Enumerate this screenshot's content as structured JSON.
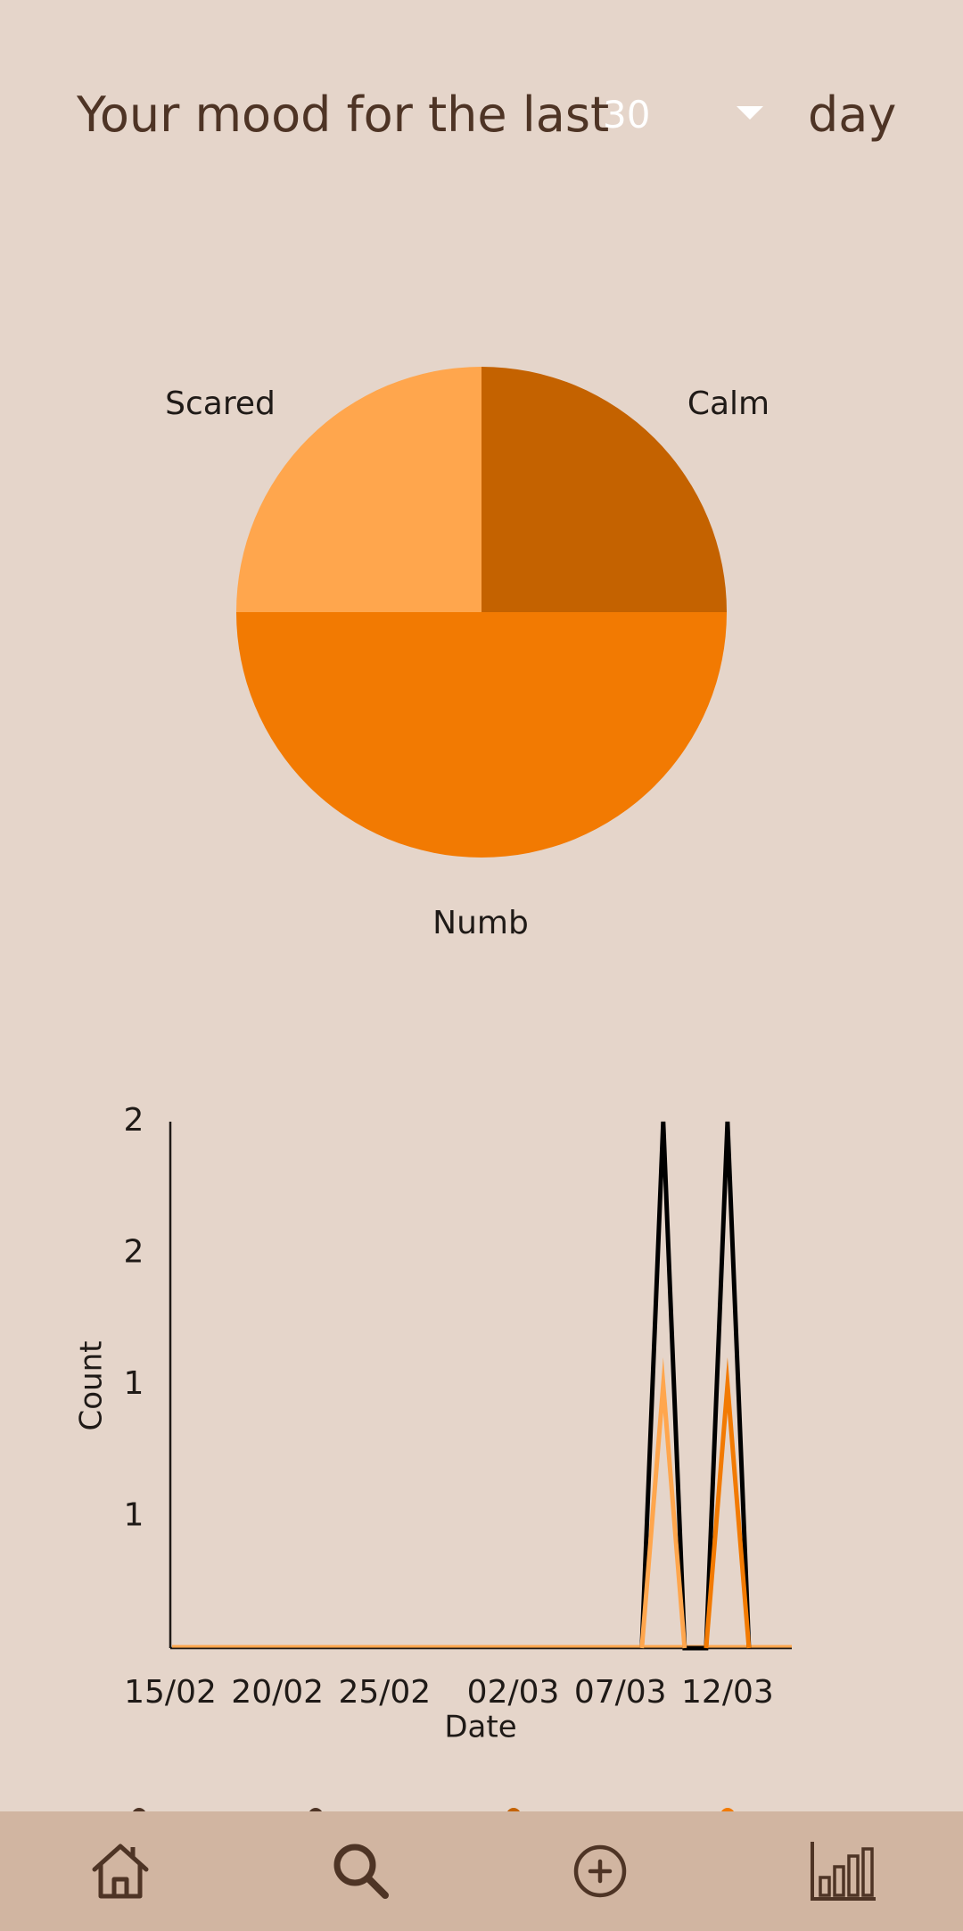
{
  "header": {
    "title_prefix": "Your mood for the last",
    "period_value": "30",
    "title_suffix": "day"
  },
  "chart_data": [
    {
      "type": "pie",
      "slices": [
        {
          "label": "Calm",
          "value": 25,
          "color": "#C46200"
        },
        {
          "label": "Numb",
          "value": 50,
          "color": "#F27A02"
        },
        {
          "label": "Scared",
          "value": 25,
          "color": "#FFA64D"
        }
      ]
    },
    {
      "type": "line",
      "xlabel": "Date",
      "ylabel": "Count",
      "x_ticks": [
        "15/02",
        "20/02",
        "25/02",
        "02/03",
        "07/03",
        "12/03"
      ],
      "y_ticks": [
        {
          "value": 0.5,
          "label": "1"
        },
        {
          "value": 1.0,
          "label": "1"
        },
        {
          "value": 1.5,
          "label": "2"
        },
        {
          "value": 2.0,
          "label": "2"
        }
      ],
      "ylim": [
        0,
        2
      ],
      "xlim": [
        "15/02",
        "15/03"
      ],
      "series": [
        {
          "color": "#000000",
          "points": [
            [
              "08/03",
              0
            ],
            [
              "09/03",
              2
            ],
            [
              "10/03",
              0
            ],
            [
              "11/03",
              0
            ],
            [
              "12/03",
              2
            ],
            [
              "13/03",
              0
            ]
          ]
        },
        {
          "color": "#FFA64D",
          "points": [
            [
              "08/03",
              0
            ],
            [
              "09/03",
              1
            ],
            [
              "10/03",
              0
            ]
          ]
        },
        {
          "color": "#F27A02",
          "points": [
            [
              "11/03",
              0
            ],
            [
              "12/03",
              1
            ],
            [
              "13/03",
              0
            ]
          ]
        }
      ],
      "legend_colors": [
        "#4E3425",
        "#4E3425",
        "#C46200",
        "#F27A02"
      ]
    }
  ],
  "nav": {
    "items": [
      {
        "name": "home",
        "icon": "home-icon"
      },
      {
        "name": "search",
        "icon": "search-icon"
      },
      {
        "name": "add",
        "icon": "add-circle-icon"
      },
      {
        "name": "stats",
        "icon": "bar-chart-icon"
      }
    ],
    "icon_color": "#4E3425"
  }
}
